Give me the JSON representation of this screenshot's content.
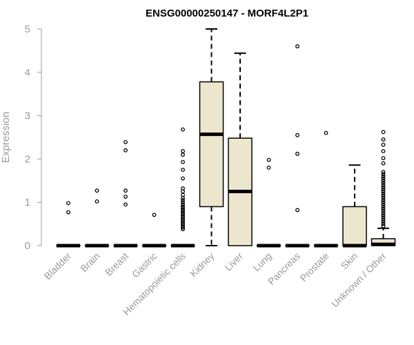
{
  "chart_data": {
    "type": "box",
    "title": "ENSG00000250147 - MORF4L2P1",
    "xlabel": "",
    "ylabel": "Expression",
    "ylim": [
      0,
      5
    ],
    "yticks": [
      0,
      1,
      2,
      3,
      4,
      5
    ],
    "box_fill": "#ede6cf",
    "categories": [
      "Bladder",
      "Brain",
      "Breast",
      "Gastric",
      "Hematopoietic cells",
      "Kidney",
      "Liver",
      "Lung",
      "Pancreas",
      "Prostate",
      "Skin",
      "Unknown / Other"
    ],
    "boxes": [
      {
        "category": "Bladder",
        "min": 0,
        "q1": 0,
        "median": 0,
        "q3": 0,
        "max": 0,
        "outliers": [
          0.77,
          0.98
        ]
      },
      {
        "category": "Brain",
        "min": 0,
        "q1": 0,
        "median": 0,
        "q3": 0,
        "max": 0,
        "outliers": [
          1.02,
          1.27
        ]
      },
      {
        "category": "Breast",
        "min": 0,
        "q1": 0,
        "median": 0,
        "q3": 0,
        "max": 0,
        "outliers": [
          0.95,
          1.13,
          1.27,
          2.2,
          2.39
        ]
      },
      {
        "category": "Gastric",
        "min": 0,
        "q1": 0,
        "median": 0,
        "q3": 0,
        "max": 0,
        "outliers": [
          0.71
        ]
      },
      {
        "category": "Hematopoietic cells",
        "min": 0,
        "q1": 0,
        "median": 0,
        "q3": 0,
        "max": 0,
        "outliers": [
          0.38,
          0.42,
          0.46,
          0.5,
          0.54,
          0.58,
          0.62,
          0.66,
          0.7,
          0.74,
          0.78,
          0.82,
          0.86,
          0.9,
          0.95,
          1.0,
          1.05,
          1.1,
          1.17,
          1.25,
          1.32,
          1.55,
          1.75,
          1.93,
          2.1,
          2.18,
          2.68
        ]
      },
      {
        "category": "Kidney",
        "min": 0,
        "q1": 0.9,
        "median": 2.57,
        "q3": 3.78,
        "max": 5.0,
        "outliers": []
      },
      {
        "category": "Liver",
        "min": 0,
        "q1": 0,
        "median": 1.25,
        "q3": 2.48,
        "max": 4.44,
        "outliers": []
      },
      {
        "category": "Lung",
        "min": 0,
        "q1": 0,
        "median": 0,
        "q3": 0,
        "max": 0,
        "outliers": [
          1.8,
          1.98
        ]
      },
      {
        "category": "Pancreas",
        "min": 0,
        "q1": 0,
        "median": 0,
        "q3": 0,
        "max": 0,
        "outliers": [
          0.82,
          2.12,
          2.55,
          4.6
        ]
      },
      {
        "category": "Prostate",
        "min": 0,
        "q1": 0,
        "median": 0,
        "q3": 0,
        "max": 0,
        "outliers": [
          2.6
        ]
      },
      {
        "category": "Skin",
        "min": 0,
        "q1": 0,
        "median": 0,
        "q3": 0.9,
        "max": 1.86,
        "outliers": []
      },
      {
        "category": "Unknown / Other",
        "min": 0,
        "q1": 0,
        "median": 0.03,
        "q3": 0.16,
        "max": 0.4,
        "outliers": [
          0.45,
          0.5,
          0.55,
          0.6,
          0.65,
          0.7,
          0.75,
          0.8,
          0.85,
          0.9,
          0.95,
          1.0,
          1.05,
          1.1,
          1.15,
          1.2,
          1.25,
          1.3,
          1.35,
          1.4,
          1.45,
          1.5,
          1.55,
          1.6,
          1.65,
          1.7,
          1.9,
          2.02,
          2.18,
          2.33,
          2.45,
          2.62
        ]
      }
    ]
  }
}
